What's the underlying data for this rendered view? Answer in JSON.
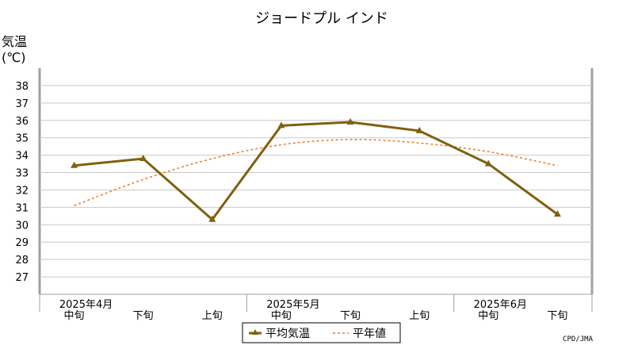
{
  "chart_data": {
    "type": "line",
    "title": "ジョードプル インド",
    "ylabel_line1": "気温",
    "ylabel_line2": "(℃)",
    "ylim": [
      26,
      39
    ],
    "yticks": [
      27,
      28,
      29,
      30,
      31,
      32,
      33,
      34,
      35,
      36,
      37,
      38
    ],
    "grid": true,
    "categories": [
      "中旬",
      "下旬",
      "上旬",
      "中旬",
      "下旬",
      "上旬",
      "中旬",
      "下旬"
    ],
    "month_labels": [
      {
        "label": "2025年4月",
        "index": 0
      },
      {
        "label": "2025年5月",
        "index": 3
      },
      {
        "label": "2025年6月",
        "index": 6
      }
    ],
    "series": [
      {
        "name": "平均気温",
        "color": "#806010",
        "style": "solid",
        "values": [
          33.4,
          33.8,
          30.3,
          35.7,
          35.9,
          35.4,
          33.5,
          30.6
        ]
      },
      {
        "name": "平年値",
        "color": "#f07820",
        "style": "dashed",
        "values": [
          31.1,
          32.6,
          33.8,
          34.6,
          34.9,
          34.7,
          34.2,
          33.4
        ]
      }
    ],
    "legend": "bottom-center",
    "credit": "CPD/JMA"
  }
}
